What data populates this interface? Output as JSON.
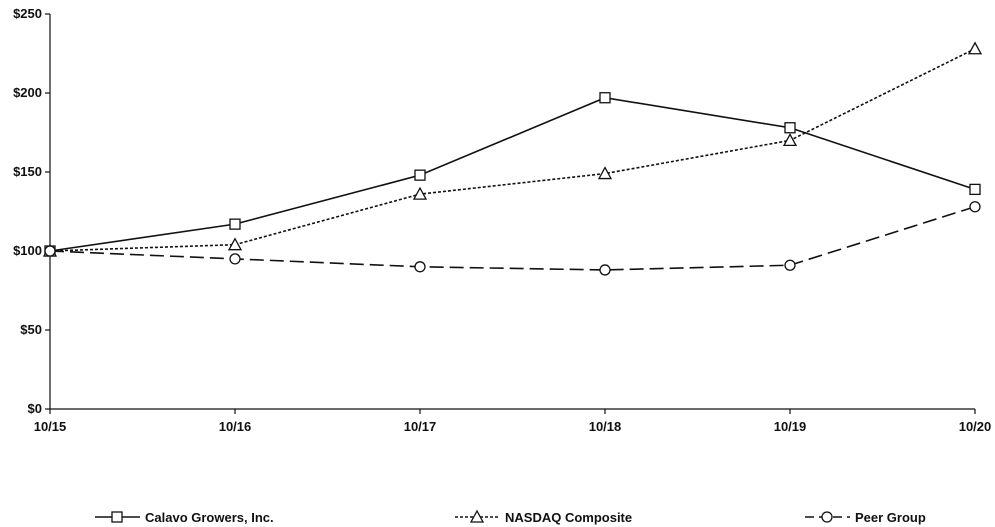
{
  "chart_data": {
    "type": "line",
    "title": "",
    "xlabel": "",
    "ylabel": "",
    "categories": [
      "10/15",
      "10/16",
      "10/17",
      "10/18",
      "10/19",
      "10/20"
    ],
    "y_ticks": [
      "$0",
      "$50",
      "$100",
      "$150",
      "$200",
      "$250"
    ],
    "ylim": [
      0,
      250
    ],
    "grid": false,
    "legend_position": "bottom",
    "series": [
      {
        "name": "Calavo Growers, Inc.",
        "values": [
          100,
          117,
          148,
          197,
          178,
          139
        ],
        "marker": "square",
        "line_style": "solid",
        "color": "#111111"
      },
      {
        "name": "NASDAQ Composite",
        "values": [
          100,
          104,
          136,
          149,
          170,
          228
        ],
        "marker": "triangle",
        "line_style": "dotted",
        "color": "#111111"
      },
      {
        "name": "Peer Group",
        "values": [
          100,
          95,
          90,
          88,
          91,
          128
        ],
        "marker": "circle",
        "line_style": "dashed",
        "color": "#111111"
      }
    ]
  }
}
